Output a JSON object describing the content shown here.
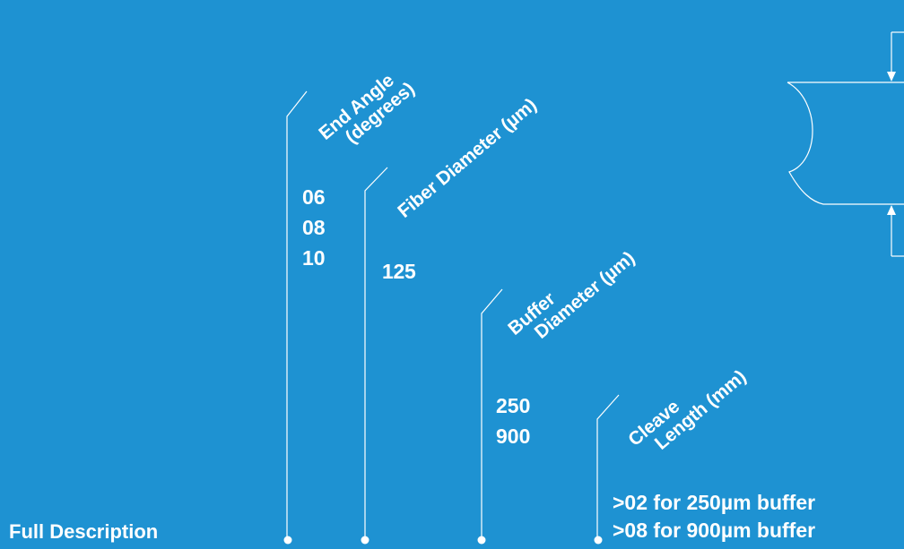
{
  "labels": {
    "end_angle_1": "End Angle",
    "end_angle_2": "(degrees)",
    "fiber_diameter": "Fiber Diameter (µm)",
    "buffer_1": "Buffer",
    "buffer_2": "Diameter (µm)",
    "cleave_1": "Cleave",
    "cleave_2": "Length (mm)"
  },
  "values": {
    "end_angle": [
      "06",
      "08",
      "10"
    ],
    "fiber_diameter": "125",
    "buffer_diameter": [
      "250",
      "900"
    ],
    "cleave_length": [
      ">02 for 250µm buffer",
      ">08 for 900µm buffer"
    ]
  },
  "footer": {
    "full_description": "Full Description"
  },
  "colors": {
    "background": "#1e92d2",
    "foreground": "#ffffff"
  }
}
